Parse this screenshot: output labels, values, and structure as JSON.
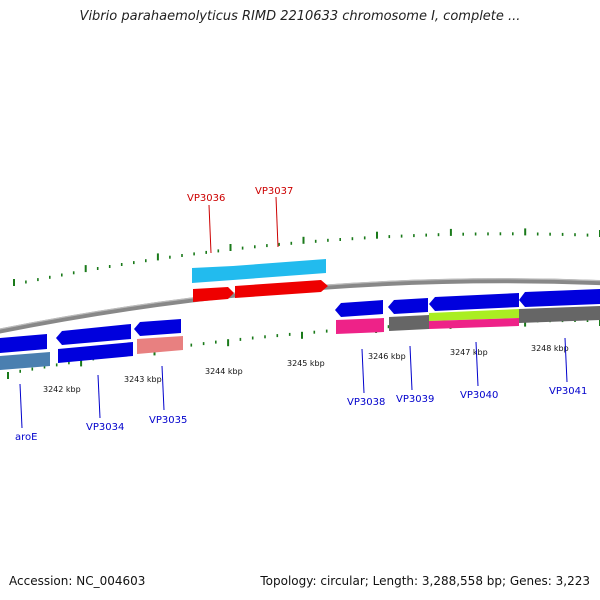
{
  "title": "Vibrio parahaemolyticus RIMD 2210633 chromosome I, complete ...",
  "footer": {
    "accession_label": "Accession:",
    "accession": "NC_004603",
    "topology_text": "Topology: circular; Length: 3,288,558 bp; Genes: 3,223"
  },
  "colors": {
    "backbone": "#888888",
    "tick": "#1a7a1a",
    "forward_label": "#cc0000",
    "reverse_label": "#0000cc",
    "cds_blue": "#0000dd",
    "cds_red": "#ee0000",
    "cds_cyan": "#22bbee",
    "cds_steel": "#4a7fb0",
    "cds_salmon": "#e88080",
    "cds_magenta": "#ee2288",
    "cds_gray": "#666666",
    "cds_lime": "#aaee22"
  },
  "scale_labels": [
    "3242 kbp",
    "3243 kbp",
    "3244 kbp",
    "3245 kbp",
    "3246 kbp",
    "3247 kbp",
    "3248 kbp"
  ],
  "forward_genes": [
    {
      "name": "VP3036",
      "color": "cds_red"
    },
    {
      "name": "VP3037",
      "color": "cds_red"
    }
  ],
  "reverse_genes": [
    {
      "name": "aroE",
      "color": "cds_blue"
    },
    {
      "name": "VP3034",
      "color": "cds_blue"
    },
    {
      "name": "VP3035",
      "color": "cds_blue"
    },
    {
      "name": "VP3038",
      "color": "cds_blue"
    },
    {
      "name": "VP3039",
      "color": "cds_blue"
    },
    {
      "name": "VP3040",
      "color": "cds_blue"
    },
    {
      "name": "VP3041",
      "color": "cds_blue"
    }
  ]
}
